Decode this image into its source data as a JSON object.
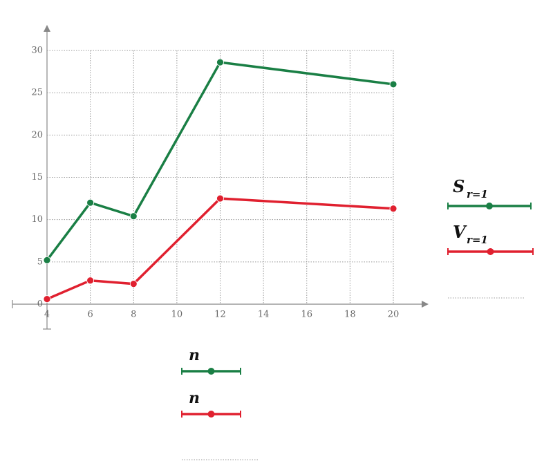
{
  "chart_data": {
    "type": "line",
    "x": [
      4,
      6,
      8,
      12,
      20
    ],
    "series": [
      {
        "name": "S",
        "subscript": "r=1",
        "x_name": "n",
        "color": "#1a7f45",
        "values": [
          5.2,
          12,
          10.4,
          28.6,
          26
        ]
      },
      {
        "name": "V",
        "subscript": "r=1",
        "x_name": "n",
        "color": "#e0202f",
        "values": [
          0.6,
          2.8,
          2.4,
          12.5,
          11.3
        ]
      }
    ],
    "xlim": [
      4,
      20
    ],
    "ylim": [
      0,
      30
    ],
    "xticks": [
      4,
      6,
      8,
      10,
      12,
      14,
      16,
      18,
      20
    ],
    "yticks": [
      0,
      5,
      10,
      15,
      20,
      25,
      30
    ],
    "grid": true
  }
}
